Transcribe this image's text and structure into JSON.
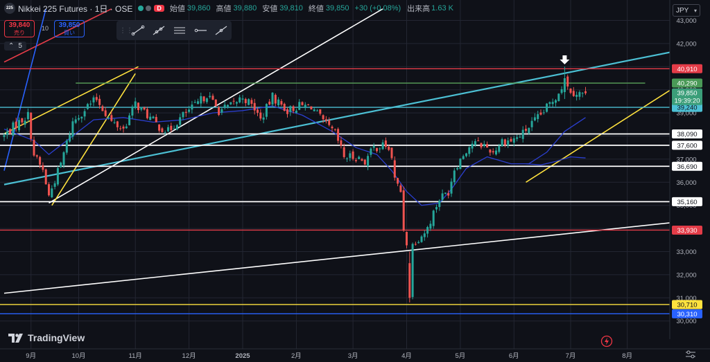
{
  "header": {
    "symbol_badge": "225",
    "symbol": "Nikkei 225 Futures · 1日 · OSE",
    "d_badge": "D",
    "ohlc": [
      {
        "label": "始値",
        "value": "39,860"
      },
      {
        "label": "高値",
        "value": "39,880"
      },
      {
        "label": "安値",
        "value": "39,810"
      },
      {
        "label": "終値",
        "value": "39,850"
      }
    ],
    "change": "+30 (+0.08%)",
    "volume_label": "出来高",
    "volume_value": "1.63 K"
  },
  "trade": {
    "sell_price": "39,840",
    "sell_label": "売り",
    "buy_price": "39,850",
    "buy_label": "買い",
    "spread": "10"
  },
  "indicators": {
    "collapse": "⌃",
    "count": "5"
  },
  "currency": {
    "label": "JPY"
  },
  "brand": {
    "name": "TradingView"
  },
  "colors": {
    "background": "#0f1118",
    "up": "#26a69a",
    "down": "#ef5350",
    "ma": "#2b3fd0",
    "grid": "#232632",
    "cyan": "#4cc0d4",
    "yellow": "#ffe23e",
    "red": "#e33c48",
    "green": "#5aa45a",
    "white": "#ffffff",
    "blue": "#2962ff"
  },
  "chart_data": {
    "type": "candlestick",
    "timeframe": "1日",
    "ylim": [
      30000,
      43500
    ],
    "y_ticks": [
      30000,
      31000,
      32000,
      33000,
      34000,
      35000,
      36000,
      37000,
      38000,
      39000,
      40000,
      41000,
      42000,
      43000
    ],
    "x_ticks": [
      {
        "label": "9月",
        "t": 9
      },
      {
        "label": "10月",
        "t": 25
      },
      {
        "label": "11月",
        "t": 44
      },
      {
        "label": "12月",
        "t": 62
      },
      {
        "label": "2025",
        "t": 80
      },
      {
        "label": "2月",
        "t": 98
      },
      {
        "label": "3月",
        "t": 117
      },
      {
        "label": "4月",
        "t": 135
      },
      {
        "label": "5月",
        "t": 153
      },
      {
        "label": "6月",
        "t": 171
      },
      {
        "label": "7月",
        "t": 190
      },
      {
        "label": "8月",
        "t": 209
      }
    ],
    "last_candle_index": 195,
    "close_anchors": [
      [
        0,
        38000
      ],
      [
        3,
        38400
      ],
      [
        8,
        38900
      ],
      [
        10,
        37200
      ],
      [
        13,
        36500
      ],
      [
        15,
        35400
      ],
      [
        19,
        36800
      ],
      [
        23,
        38600
      ],
      [
        28,
        39300
      ],
      [
        31,
        39600
      ],
      [
        36,
        38600
      ],
      [
        40,
        38300
      ],
      [
        44,
        39400
      ],
      [
        48,
        38900
      ],
      [
        52,
        38400
      ],
      [
        55,
        38200
      ],
      [
        60,
        38900
      ],
      [
        64,
        39300
      ],
      [
        68,
        39800
      ],
      [
        72,
        39100
      ],
      [
        76,
        39300
      ],
      [
        80,
        39700
      ],
      [
        84,
        39200
      ],
      [
        86,
        38700
      ],
      [
        90,
        39700
      ],
      [
        95,
        39100
      ],
      [
        99,
        39300
      ],
      [
        103,
        39300
      ],
      [
        107,
        38600
      ],
      [
        111,
        38100
      ],
      [
        114,
        37100
      ],
      [
        118,
        37100
      ],
      [
        121,
        36900
      ],
      [
        124,
        37500
      ],
      [
        128,
        37600
      ],
      [
        130,
        37100
      ],
      [
        131,
        36100
      ],
      [
        133,
        35600
      ],
      [
        134,
        34000
      ],
      [
        135,
        33400
      ],
      [
        136,
        31800
      ],
      [
        137,
        33300
      ],
      [
        138,
        33500
      ],
      [
        140,
        33700
      ],
      [
        142,
        34000
      ],
      [
        144,
        34700
      ],
      [
        146,
        35300
      ],
      [
        149,
        35600
      ],
      [
        151,
        36600
      ],
      [
        153,
        37000
      ],
      [
        155,
        37400
      ],
      [
        157,
        37700
      ],
      [
        161,
        37600
      ],
      [
        164,
        37300
      ],
      [
        167,
        37800
      ],
      [
        170,
        37800
      ],
      [
        173,
        38000
      ],
      [
        176,
        38400
      ],
      [
        180,
        38900
      ],
      [
        183,
        39400
      ],
      [
        185,
        39700
      ],
      [
        187,
        40150
      ],
      [
        188,
        40500
      ],
      [
        189,
        40100
      ],
      [
        191,
        39900
      ],
      [
        193,
        39850
      ],
      [
        195,
        39850
      ]
    ],
    "special_candles": [
      {
        "i": 136,
        "open": 32500,
        "high": 33000,
        "low": 30800,
        "close": 31000
      },
      {
        "i": 188,
        "open": 39900,
        "high": 41000,
        "low": 39600,
        "close": 40500
      }
    ],
    "moving_average_anchors": [
      [
        0,
        38300
      ],
      [
        10,
        37800
      ],
      [
        15,
        37200
      ],
      [
        20,
        37700
      ],
      [
        30,
        38700
      ],
      [
        40,
        38800
      ],
      [
        50,
        38600
      ],
      [
        60,
        38700
      ],
      [
        70,
        39000
      ],
      [
        80,
        39100
      ],
      [
        90,
        39300
      ],
      [
        100,
        38900
      ],
      [
        110,
        38200
      ],
      [
        118,
        37500
      ],
      [
        125,
        37200
      ],
      [
        130,
        36500
      ],
      [
        135,
        35600
      ],
      [
        140,
        35000
      ],
      [
        146,
        35100
      ],
      [
        150,
        35700
      ],
      [
        155,
        36600
      ],
      [
        162,
        37100
      ],
      [
        170,
        36800
      ],
      [
        176,
        36800
      ],
      [
        182,
        37300
      ],
      [
        188,
        38200
      ],
      [
        195,
        38800
      ]
    ],
    "moving_average_2_anchors": [
      [
        175,
        36800
      ],
      [
        180,
        36750
      ],
      [
        185,
        36900
      ],
      [
        190,
        37100
      ],
      [
        195,
        37050
      ]
    ],
    "horizontal_levels": [
      {
        "price": 40910,
        "label": "40,910",
        "color": "red"
      },
      {
        "price": 40290,
        "label": "40,290",
        "color": "green"
      },
      {
        "price": 39240,
        "label": "39,240",
        "color": "cyan"
      },
      {
        "price": 38090,
        "label": "38,090",
        "color": "white"
      },
      {
        "price": 37600,
        "label": "37,600",
        "color": "white"
      },
      {
        "price": 36690,
        "label": "36,690",
        "color": "white"
      },
      {
        "price": 35160,
        "label": "35,160",
        "color": "white"
      },
      {
        "price": 33930,
        "label": "33,930",
        "color": "red"
      },
      {
        "price": 30710,
        "label": "30,710",
        "color": "yellow"
      },
      {
        "price": 30310,
        "label": "30,310",
        "color": "blue"
      }
    ],
    "trendlines": [
      {
        "from": [
          0,
          41200
        ],
        "to": [
          36,
          43500
        ],
        "color": "red"
      },
      {
        "from": [
          0,
          36500
        ],
        "to": [
          14,
          43500
        ],
        "color": "blue"
      },
      {
        "from": [
          0,
          35900
        ],
        "to": [
          242,
          42100
        ],
        "color": "cyan"
      },
      {
        "from": [
          0,
          31200
        ],
        "to": [
          242,
          34500
        ],
        "color": "white"
      },
      {
        "from": [
          15,
          35100
        ],
        "to": [
          127,
          43500
        ],
        "color": "white"
      },
      {
        "from": [
          0,
          38100
        ],
        "to": [
          45,
          41000
        ],
        "color": "yellow"
      },
      {
        "from": [
          16,
          35000
        ],
        "to": [
          44,
          40700
        ],
        "color": "yellow"
      },
      {
        "from": [
          175,
          36000
        ],
        "to": [
          226,
          40200
        ],
        "color": "yellow"
      }
    ],
    "price_tag": {
      "price": 39850,
      "label": "39,850",
      "countdown": "19:39:20"
    },
    "marker": {
      "type": "arrow-down",
      "index": 188
    }
  }
}
